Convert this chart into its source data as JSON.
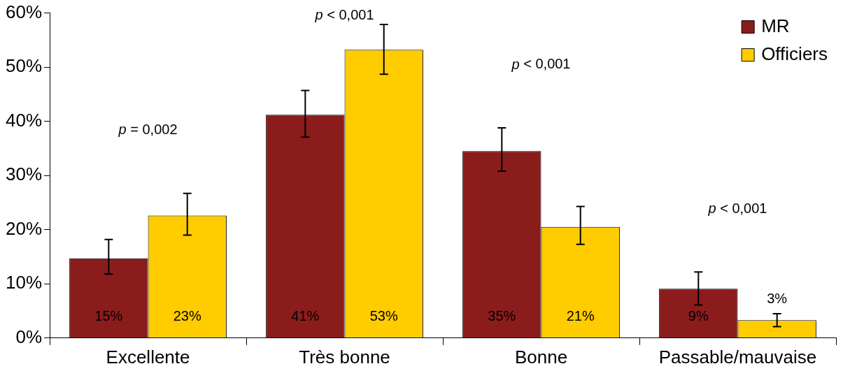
{
  "chart_data": {
    "type": "bar",
    "categories": [
      "Excellente",
      "Très bonne",
      "Bonne",
      "Passable/mauvaise"
    ],
    "series": [
      {
        "name": "MR",
        "color": "#8b1c1c",
        "values": [
          14.7,
          41.2,
          34.5,
          9.1
        ],
        "errors": [
          [
            11.8,
            18.2
          ],
          [
            37.1,
            45.7
          ],
          [
            30.8,
            38.8
          ],
          [
            6.1,
            12.2
          ]
        ],
        "value_labels": [
          "15%",
          "41%",
          "35%",
          "9%"
        ]
      },
      {
        "name": "Officiers",
        "color": "#ffcc00",
        "values": [
          22.6,
          53.2,
          20.5,
          3.3
        ],
        "errors": [
          [
            19.0,
            26.7
          ],
          [
            48.7,
            57.9
          ],
          [
            17.3,
            24.3
          ],
          [
            2.1,
            4.5
          ]
        ],
        "value_labels": [
          "23%",
          "53%",
          "21%",
          "3%"
        ]
      }
    ],
    "ylim": [
      0,
      60
    ],
    "yticks": [
      {
        "value": 0,
        "label": "0%"
      },
      {
        "value": 10,
        "label": "10%"
      },
      {
        "value": 20,
        "label": "20%"
      },
      {
        "value": 30,
        "label": "30%"
      },
      {
        "value": 40,
        "label": "40%"
      },
      {
        "value": 50,
        "label": "50%"
      },
      {
        "value": 60,
        "label": "60%"
      }
    ],
    "annotations": [
      "p = 0,002",
      "p < 0,001",
      "p < 0,001",
      "p < 0,001"
    ],
    "grid": false,
    "legend": "top right"
  }
}
